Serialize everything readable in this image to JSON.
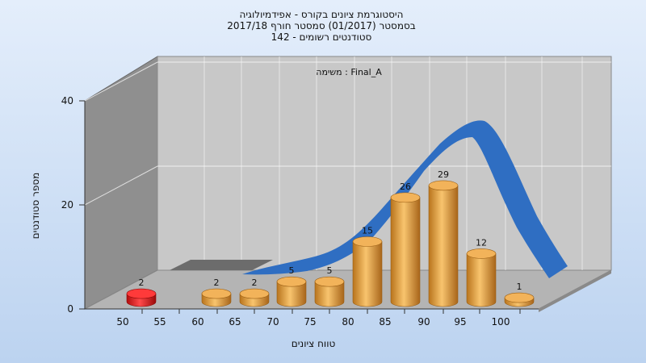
{
  "chart_data": {
    "type": "bar",
    "title_lines": [
      "היסטוגרמת ציונים בקורס - אפידמיולוגיה",
      "בסמסטר  (01/2017)  סמסטר חורף 2017/18",
      "סטודנטים רשומים - 142"
    ],
    "task_label": "משימה : Final_A",
    "xlabel": "טווח ציונים",
    "ylabel": "מספר סטודנטים",
    "x_ticks": [
      "50",
      "55",
      "60",
      "65",
      "70",
      "75",
      "80",
      "85",
      "90",
      "95",
      "100"
    ],
    "y_ticks": [
      "0",
      "20",
      "40"
    ],
    "ylim": [
      0,
      40
    ],
    "categories": [
      "50",
      "60",
      "65",
      "70",
      "75",
      "80",
      "85",
      "90",
      "95",
      "100"
    ],
    "values": [
      2,
      2,
      2,
      5,
      5,
      15,
      26,
      29,
      12,
      1
    ],
    "highlighted_categories": [
      "50"
    ],
    "distribution_curve": true,
    "grid": true,
    "colors": {
      "bar": "#e8a33e",
      "highlight_bar": "#e01818",
      "curve": "#2f6ec2",
      "back_wall": "#c8c8c8",
      "side_wall": "#8f8f8f",
      "floor": "#b4b4b4",
      "background_top": "#e4eefb",
      "background_bottom": "#bcd3f0"
    }
  }
}
